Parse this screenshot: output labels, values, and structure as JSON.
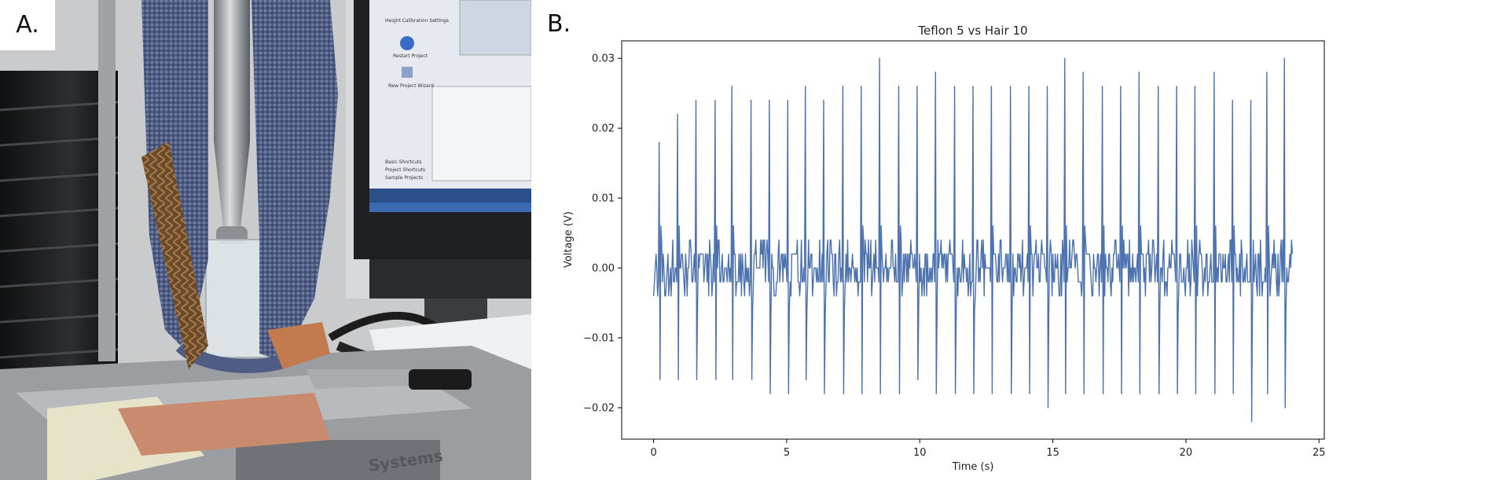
{
  "panels": {
    "a_label": "A.",
    "b_label": "B."
  },
  "photo": {
    "screen_texts": [
      "Height Calibration Settings",
      "Restart Project",
      "New Project Wizard",
      "Basic Shortcuts",
      "Project Shortcuts",
      "Sample Projects"
    ],
    "machine_text": "Systems"
  },
  "chart_data": {
    "type": "line",
    "title": "Teflon 5 vs Hair 10",
    "xlabel": "Time (s)",
    "ylabel": "Voltage (V)",
    "xlim": [
      -1.2,
      25.2
    ],
    "ylim": [
      -0.0245,
      0.0325
    ],
    "xticks": [
      0,
      5,
      10,
      15,
      20,
      25
    ],
    "xtick_labels": [
      "0",
      "5",
      "10",
      "15",
      "20",
      "25"
    ],
    "yticks": [
      -0.02,
      -0.01,
      0.0,
      0.01,
      0.02,
      0.03
    ],
    "ytick_labels": [
      "−0.02",
      "−0.01",
      "0.00",
      "0.01",
      "0.02",
      "0.03"
    ],
    "grid": false,
    "series_color": "#4c72b0",
    "series": [
      {
        "x_start": 0,
        "x_end": 24,
        "baseline_noise": 0.002,
        "pulse_period": 0.69,
        "pulses": [
          {
            "t": 0.22,
            "pos": 0.018,
            "neg": -0.016
          },
          {
            "t": 0.9,
            "pos": 0.022,
            "neg": -0.016
          },
          {
            "t": 1.6,
            "pos": 0.024,
            "neg": -0.016
          },
          {
            "t": 2.3,
            "pos": 0.024,
            "neg": -0.016
          },
          {
            "t": 2.95,
            "pos": 0.026,
            "neg": -0.016
          },
          {
            "t": 3.65,
            "pos": 0.024,
            "neg": -0.016
          },
          {
            "t": 4.35,
            "pos": 0.024,
            "neg": -0.018
          },
          {
            "t": 5.05,
            "pos": 0.024,
            "neg": -0.018
          },
          {
            "t": 5.7,
            "pos": 0.026,
            "neg": -0.016
          },
          {
            "t": 6.4,
            "pos": 0.024,
            "neg": -0.018
          },
          {
            "t": 7.1,
            "pos": 0.026,
            "neg": -0.018
          },
          {
            "t": 7.8,
            "pos": 0.026,
            "neg": -0.018
          },
          {
            "t": 8.5,
            "pos": 0.03,
            "neg": -0.018
          },
          {
            "t": 9.2,
            "pos": 0.026,
            "neg": -0.018
          },
          {
            "t": 9.9,
            "pos": 0.026,
            "neg": -0.016
          },
          {
            "t": 10.6,
            "pos": 0.028,
            "neg": -0.018
          },
          {
            "t": 11.3,
            "pos": 0.026,
            "neg": -0.018
          },
          {
            "t": 12.0,
            "pos": 0.026,
            "neg": -0.018
          },
          {
            "t": 12.7,
            "pos": 0.026,
            "neg": -0.018
          },
          {
            "t": 13.4,
            "pos": 0.026,
            "neg": -0.018
          },
          {
            "t": 14.1,
            "pos": 0.026,
            "neg": -0.018
          },
          {
            "t": 14.8,
            "pos": 0.026,
            "neg": -0.02
          },
          {
            "t": 15.45,
            "pos": 0.03,
            "neg": -0.018
          },
          {
            "t": 16.15,
            "pos": 0.028,
            "neg": -0.018
          },
          {
            "t": 16.85,
            "pos": 0.026,
            "neg": -0.018
          },
          {
            "t": 17.55,
            "pos": 0.026,
            "neg": -0.018
          },
          {
            "t": 18.25,
            "pos": 0.028,
            "neg": -0.018
          },
          {
            "t": 18.95,
            "pos": 0.026,
            "neg": -0.018
          },
          {
            "t": 19.65,
            "pos": 0.026,
            "neg": -0.018
          },
          {
            "t": 20.35,
            "pos": 0.026,
            "neg": -0.018
          },
          {
            "t": 21.05,
            "pos": 0.028,
            "neg": -0.018
          },
          {
            "t": 21.75,
            "pos": 0.024,
            "neg": -0.018
          },
          {
            "t": 22.45,
            "pos": 0.024,
            "neg": -0.022
          },
          {
            "t": 23.05,
            "pos": 0.028,
            "neg": -0.018
          },
          {
            "t": 23.7,
            "pos": 0.03,
            "neg": -0.02
          }
        ]
      }
    ]
  }
}
